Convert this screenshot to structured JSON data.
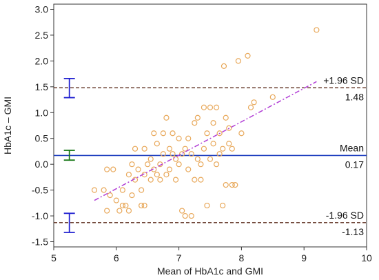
{
  "chart_data": {
    "type": "scatter",
    "title": "",
    "xlabel": "Mean of HbA1c and GMI",
    "ylabel": "HbA1c – GMI",
    "xlim": [
      5,
      10
    ],
    "ylim": [
      -1.6,
      3.1
    ],
    "x_ticks": [
      "5",
      "6",
      "7",
      "8",
      "9",
      "10"
    ],
    "y_ticks": [
      "-1.5",
      "-1.0",
      "-0.5",
      "0.0",
      "0.5",
      "1.0",
      "1.5",
      "2.0",
      "2.5",
      "3.0"
    ],
    "grid": false,
    "reference_lines": [
      {
        "name": "mean",
        "value": 0.17,
        "label": "Mean",
        "value_label": "0.17",
        "color": "#1f3fbf",
        "style": "solid",
        "ci": [
          0.08,
          0.27
        ],
        "ci_color": "#1a7a1a"
      },
      {
        "name": "upper-loa",
        "value": 1.48,
        "label": "+1.96 SD",
        "value_label": "1.48",
        "color": "#5a2a1a",
        "style": "dashed",
        "ci": [
          1.29,
          1.66
        ],
        "ci_color": "#2020d0"
      },
      {
        "name": "lower-loa",
        "value": -1.13,
        "label": "-1.96 SD",
        "value_label": "-1.13",
        "color": "#5a2a1a",
        "style": "dashed",
        "ci": [
          -1.32,
          -0.95
        ],
        "ci_color": "#2020d0"
      }
    ],
    "regression_line": {
      "x": [
        5.65,
        9.2
      ],
      "y": [
        -0.7,
        1.6
      ],
      "color": "#b23fd6",
      "style": "dash-dot"
    },
    "point_color": "#e8a85a",
    "points": [
      [
        5.65,
        -0.5
      ],
      [
        5.8,
        -0.5
      ],
      [
        5.85,
        -0.1
      ],
      [
        5.85,
        -0.9
      ],
      [
        5.9,
        -0.6
      ],
      [
        5.95,
        -0.1
      ],
      [
        6.0,
        -0.7
      ],
      [
        6.05,
        -0.9
      ],
      [
        6.1,
        -0.5
      ],
      [
        6.1,
        -0.8
      ],
      [
        6.15,
        -0.8
      ],
      [
        6.2,
        -0.9
      ],
      [
        6.2,
        -0.2
      ],
      [
        6.25,
        0.0
      ],
      [
        6.25,
        -0.6
      ],
      [
        6.3,
        0.3
      ],
      [
        6.3,
        -0.3
      ],
      [
        6.35,
        -0.1
      ],
      [
        6.4,
        -0.5
      ],
      [
        6.4,
        -0.8
      ],
      [
        6.45,
        -0.2
      ],
      [
        6.45,
        0.3
      ],
      [
        6.45,
        -0.8
      ],
      [
        6.5,
        0.0
      ],
      [
        6.55,
        -0.3
      ],
      [
        6.55,
        0.1
      ],
      [
        6.6,
        0.6
      ],
      [
        6.6,
        -0.1
      ],
      [
        6.65,
        -0.2
      ],
      [
        6.65,
        0.4
      ],
      [
        6.7,
        0.0
      ],
      [
        6.7,
        -0.3
      ],
      [
        6.75,
        0.6
      ],
      [
        6.75,
        0.2
      ],
      [
        6.8,
        -0.2
      ],
      [
        6.8,
        0.9
      ],
      [
        6.85,
        -0.1
      ],
      [
        6.85,
        0.3
      ],
      [
        6.9,
        0.2
      ],
      [
        6.9,
        0.6
      ],
      [
        6.95,
        -0.3
      ],
      [
        6.95,
        0.1
      ],
      [
        7.0,
        0.0
      ],
      [
        7.0,
        0.5
      ],
      [
        7.05,
        0.2
      ],
      [
        7.05,
        -0.9
      ],
      [
        7.1,
        -1.0
      ],
      [
        7.1,
        0.3
      ],
      [
        7.15,
        -0.1
      ],
      [
        7.15,
        0.5
      ],
      [
        7.2,
        0.2
      ],
      [
        7.2,
        -1.0
      ],
      [
        7.25,
        0.8
      ],
      [
        7.25,
        -0.3
      ],
      [
        7.3,
        0.1
      ],
      [
        7.3,
        0.9
      ],
      [
        7.35,
        0.0
      ],
      [
        7.35,
        -0.3
      ],
      [
        7.4,
        0.3
      ],
      [
        7.4,
        1.1
      ],
      [
        7.45,
        0.6
      ],
      [
        7.45,
        -0.8
      ],
      [
        7.5,
        0.1
      ],
      [
        7.5,
        1.1
      ],
      [
        7.55,
        0.4
      ],
      [
        7.55,
        0.8
      ],
      [
        7.6,
        0.0
      ],
      [
        7.6,
        1.1
      ],
      [
        7.65,
        0.2
      ],
      [
        7.65,
        0.6
      ],
      [
        7.7,
        0.3
      ],
      [
        7.7,
        -0.8
      ],
      [
        7.72,
        1.9
      ],
      [
        7.75,
        0.9
      ],
      [
        7.75,
        -0.4
      ],
      [
        7.8,
        0.4
      ],
      [
        7.8,
        0.7
      ],
      [
        7.85,
        -0.4
      ],
      [
        7.85,
        0.3
      ],
      [
        7.9,
        -0.4
      ],
      [
        7.95,
        2.0
      ],
      [
        8.0,
        0.6
      ],
      [
        8.1,
        2.1
      ],
      [
        8.15,
        1.1
      ],
      [
        8.2,
        1.2
      ],
      [
        8.5,
        1.3
      ],
      [
        9.2,
        2.6
      ]
    ]
  }
}
